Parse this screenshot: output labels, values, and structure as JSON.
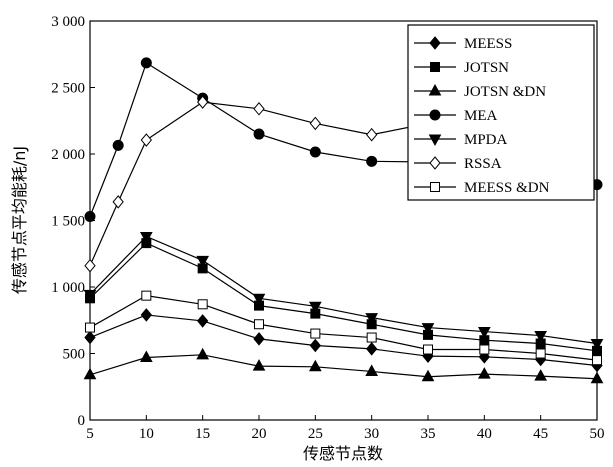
{
  "chart_data": {
    "type": "line",
    "xlabel": "传感节点数",
    "ylabel": "传感节点平均能耗/nJ",
    "xlim": [
      5,
      50
    ],
    "ylim": [
      0,
      3000
    ],
    "x_ticks": [
      5,
      10,
      15,
      20,
      25,
      30,
      35,
      40,
      45,
      50
    ],
    "x_tick_labels": [
      "5",
      "10",
      "15",
      "20",
      "25",
      "30",
      "35",
      "40",
      "45",
      "50"
    ],
    "y_ticks": [
      0,
      500,
      1000,
      1500,
      2000,
      2500,
      3000
    ],
    "y_tick_labels": [
      "0",
      "500",
      "1 000",
      "1 500",
      "2 000",
      "2 500",
      "3 000"
    ],
    "grid": false,
    "legend_position": "top-right",
    "series": [
      {
        "name": "MEESS",
        "marker": "filled-diamond",
        "x": [
          5,
          10,
          15,
          20,
          25,
          30,
          35,
          40,
          45,
          50
        ],
        "y": [
          620,
          790,
          745,
          610,
          560,
          535,
          480,
          475,
          455,
          410
        ]
      },
      {
        "name": "JOTSN",
        "marker": "filled-square",
        "x": [
          5,
          10,
          15,
          20,
          25,
          30,
          35,
          40,
          45,
          50
        ],
        "y": [
          915,
          1330,
          1140,
          860,
          800,
          720,
          640,
          600,
          575,
          520
        ]
      },
      {
        "name": "JOTSN &DN",
        "marker": "filled-triangle-up",
        "x": [
          5,
          10,
          15,
          20,
          25,
          30,
          35,
          40,
          45,
          50
        ],
        "y": [
          340,
          470,
          490,
          405,
          400,
          365,
          325,
          345,
          330,
          310
        ]
      },
      {
        "name": "MEA",
        "marker": "filled-circle",
        "x": [
          5,
          7.5,
          10,
          15,
          20,
          25,
          30,
          35,
          50
        ],
        "y": [
          1530,
          2065,
          2685,
          2420,
          2150,
          2015,
          1945,
          1940,
          1770
        ]
      },
      {
        "name": "MPDA",
        "marker": "filled-triangle-down",
        "x": [
          5,
          10,
          15,
          20,
          25,
          30,
          35,
          40,
          45,
          50
        ],
        "y": [
          945,
          1380,
          1200,
          915,
          855,
          770,
          695,
          665,
          635,
          575
        ]
      },
      {
        "name": "RSSA",
        "marker": "open-diamond",
        "x": [
          5,
          7.5,
          10,
          15,
          20,
          25,
          30,
          35
        ],
        "y": [
          1160,
          1640,
          2105,
          2390,
          2340,
          2230,
          2145,
          2230
        ]
      },
      {
        "name": "MEESS &DN",
        "marker": "open-square",
        "x": [
          5,
          10,
          15,
          20,
          25,
          30,
          35,
          40,
          45,
          50
        ],
        "y": [
          695,
          935,
          870,
          720,
          650,
          620,
          530,
          530,
          500,
          450
        ]
      }
    ]
  }
}
